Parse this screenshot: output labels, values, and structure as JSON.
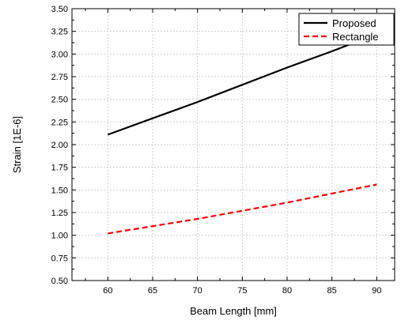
{
  "chart_data": {
    "type": "line",
    "xlabel": "Beam Length [mm]",
    "ylabel": "Strain [1E-6]",
    "xlim": [
      56,
      92
    ],
    "ylim": [
      0.5,
      3.5
    ],
    "xticks": [
      60,
      65,
      70,
      75,
      80,
      85,
      90
    ],
    "yticks": [
      0.5,
      0.75,
      1.0,
      1.25,
      1.5,
      1.75,
      2.0,
      2.25,
      2.5,
      2.75,
      3.0,
      3.25,
      3.5
    ],
    "xtick_labels": [
      "60",
      "65",
      "70",
      "75",
      "80",
      "85",
      "90"
    ],
    "ytick_labels": [
      "0.50",
      "0.75",
      "1.00",
      "1.25",
      "1.50",
      "1.75",
      "2.00",
      "2.25",
      "2.50",
      "2.75",
      "3.00",
      "3.25",
      "3.50"
    ],
    "grid": true,
    "legend_position": "top-right",
    "series": [
      {
        "name": "Proposed",
        "color": "#000000",
        "style": "solid",
        "x": [
          60,
          65,
          70,
          75,
          80,
          85,
          90
        ],
        "y": [
          2.11,
          2.29,
          2.47,
          2.66,
          2.85,
          3.03,
          3.22
        ]
      },
      {
        "name": "Rectangle",
        "color": "#ff0000",
        "style": "dashed",
        "x": [
          60,
          65,
          70,
          75,
          80,
          85,
          90
        ],
        "y": [
          1.02,
          1.1,
          1.18,
          1.27,
          1.36,
          1.46,
          1.56
        ]
      }
    ]
  }
}
